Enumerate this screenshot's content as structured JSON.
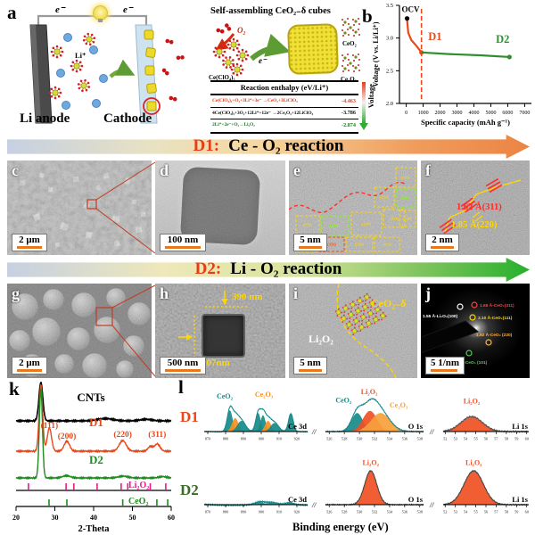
{
  "figure": {
    "panel_letters": {
      "a": "a",
      "b": "b",
      "c": "c",
      "d": "d",
      "e": "e",
      "f": "f",
      "g": "g",
      "h": "h",
      "i": "i",
      "j": "j",
      "k": "k",
      "l": "l"
    },
    "axis_break": "//"
  },
  "panel_a": {
    "electron_left": "e⁻",
    "electron_right": "e⁻",
    "electron_scheme": "e⁻",
    "anode_label": "Li anode",
    "cathode_label": "Cathode",
    "li_ion_label": "Li⁺",
    "o2_label": "O₂",
    "scheme_title": "Self-assembling CeO₂₋δ cubes",
    "precursor_label": "Ce(ClO₄)₃",
    "ceo2_label": "CeO₂",
    "ce2o3_label": "Ce₂O₃",
    "voltage_axis_label": "Voltage",
    "table": {
      "header": "Reaction enthalpy (eV/Li⁺)",
      "rows": [
        {
          "equation": "Ce(ClO₄)₃+O₂+3Li⁺+3e⁻ →CeO₂+3LiClO₄",
          "value": "-4.463",
          "color": "#e83c16"
        },
        {
          "equation": "4Ce(ClO₄)₃+3O₂+12Li⁺+12e⁻ →2Ce₂O₃+12LiClO₄",
          "value": "-3.786",
          "color": "#111111"
        },
        {
          "equation": "2Li⁺+2e⁻+O₂→Li₂O₂",
          "value": "-2.874",
          "color": "#1e7a1e"
        }
      ]
    }
  },
  "banners": {
    "d1": {
      "prefix": "D1:",
      "title": "Ce - O₂ reaction"
    },
    "d2": {
      "prefix": "D2:",
      "title": "Li - O₂ reaction"
    }
  },
  "micrographs": {
    "c": {
      "scalebar": "2 μm"
    },
    "d": {
      "scalebar": "100 nm"
    },
    "e": {
      "scalebar": "5 nm",
      "plane_labels": [
        "(111)",
        "(200)",
        "(220)",
        "(311)",
        "(220)",
        "(311)",
        "(220)",
        "(111)",
        "(111)",
        "(200)",
        "(311)",
        "(220)"
      ]
    },
    "f": {
      "scalebar": "2 nm",
      "d_spacing_1": "1.62 Å(311)",
      "d_spacing_2": "1.85 Å(220)"
    },
    "g": {
      "scalebar": "2 μm"
    },
    "h": {
      "scalebar": "500 nm",
      "height_label": "390 nm",
      "width_label": "407nm"
    },
    "i": {
      "scalebar": "5 nm",
      "phase_left": "Li₂O₂",
      "phase_right": "CeO₂₋δ"
    },
    "j": {
      "scalebar": "5 1/nm",
      "rings": [
        {
          "text": "1.55 Å-Li₂O₂(100)",
          "color": "#ffffff"
        },
        {
          "text": "1.68 Å-CeO₂(311)",
          "color": "#ff4040"
        },
        {
          "text": "3.10 Å-CeO₂(111)",
          "color": "#ffd700"
        },
        {
          "text": "1.92 Å-CeO₂ (220)",
          "color": "#ffb347"
        },
        {
          "text": "2.98Å -CeO₂ (101)",
          "color": "#55cc55"
        }
      ]
    }
  },
  "chart_data": [
    {
      "id": "discharge_curve",
      "type": "line",
      "xlabel": "Specific capacity (mAh g⁻¹)",
      "ylabel": "Voltage (V vs. Li/Li⁺)",
      "xlim": [
        -400,
        7400
      ],
      "ylim": [
        2.0,
        3.5
      ],
      "xticks": [
        0,
        1000,
        2000,
        3000,
        4000,
        5000,
        6000,
        7000
      ],
      "yticks": [
        "2.0",
        "2.5",
        "3.0",
        "3.5"
      ],
      "series": [
        {
          "name": "D1",
          "color": "#e8481c",
          "x": [
            50,
            120,
            300,
            600,
            900
          ],
          "y": [
            3.28,
            3.08,
            2.97,
            2.88,
            2.78
          ]
        },
        {
          "name": "D2",
          "color": "#2f8f2f",
          "x": [
            900,
            2500,
            4500,
            6100
          ],
          "y": [
            2.78,
            2.755,
            2.735,
            2.71
          ]
        }
      ],
      "ocv": {
        "x": 50,
        "y": 3.3,
        "label": "OCV"
      },
      "vline": {
        "x": 900,
        "color": "#e8481c"
      },
      "annotations": [
        {
          "text": "D1",
          "x": 1300,
          "y": 2.97,
          "color": "#e8481c"
        },
        {
          "text": "D2",
          "x": 5300,
          "y": 2.93,
          "color": "#2f8f2f"
        }
      ]
    },
    {
      "id": "xrd_patterns",
      "type": "line",
      "xlabel": "2-Theta",
      "xlim": [
        20,
        60
      ],
      "xticks": [
        20,
        30,
        40,
        50,
        60
      ],
      "series": [
        {
          "name": "CNTs",
          "color": "#000000",
          "peaks": [
            {
              "c": 26.4,
              "w": 0.5,
              "h": 1.0
            },
            {
              "c": 43.0,
              "w": 2.0,
              "h": 0.06
            },
            {
              "c": 53.5,
              "w": 1.5,
              "h": 0.04
            }
          ]
        },
        {
          "name": "D1",
          "color": "#e8481c",
          "peaks": [
            {
              "c": 26.4,
              "w": 0.45,
              "h": 1.0
            },
            {
              "c": 28.6,
              "w": 0.55,
              "h": 0.35
            },
            {
              "c": 33.1,
              "w": 0.7,
              "h": 0.15
            },
            {
              "c": 47.5,
              "w": 0.9,
              "h": 0.16
            },
            {
              "c": 54.6,
              "w": 0.6,
              "h": 0.07
            },
            {
              "c": 56.4,
              "w": 0.7,
              "h": 0.11
            }
          ]
        },
        {
          "name": "D2",
          "color": "#1f8a1f",
          "peaks": [
            {
              "c": 26.4,
              "w": 0.4,
              "h": 1.0
            },
            {
              "c": 33.0,
              "w": 1.0,
              "h": 0.025
            },
            {
              "c": 47.6,
              "w": 1.2,
              "h": 0.02
            },
            {
              "c": 57.8,
              "w": 1.0,
              "h": 0.015
            }
          ]
        }
      ],
      "peak_labels": [
        {
          "text": "(111)",
          "x": 28.6
        },
        {
          "text": "(200)",
          "x": 33.1
        },
        {
          "text": "(220)",
          "x": 47.5
        },
        {
          "text": "(311)",
          "x": 56.4
        }
      ],
      "references": [
        {
          "name": "Li₂O₂",
          "color": "#e8198b",
          "ticks": [
            23.2,
            32.9,
            34.9,
            40.9,
            47.1,
            48.8,
            54.6,
            58.6
          ]
        },
        {
          "name": "CeO₂",
          "color": "#1f8a1f",
          "ticks": [
            28.5,
            33.1,
            47.5,
            56.3,
            59.1
          ]
        }
      ]
    },
    {
      "id": "xps_spectra",
      "type": "area",
      "xlabel": "Binding energy (eV)",
      "rows": [
        "D1",
        "D2"
      ],
      "row_colors": {
        "D1": "#e8481c",
        "D2": "#3a6b2a"
      },
      "subplots": [
        {
          "row": "D1",
          "region": "Ce 3d",
          "xmin": 868,
          "xmax": 926,
          "xticks": [
            870,
            880,
            890,
            900,
            910,
            920
          ],
          "envelope_color": "#17898a",
          "noise": 0.015,
          "components": [
            {
              "c": 882.4,
              "w": 1.5,
              "h": 0.6,
              "color": "#17898a"
            },
            {
              "c": 885.4,
              "w": 1.8,
              "h": 0.38,
              "color": "#f59120"
            },
            {
              "c": 888.9,
              "w": 2.3,
              "h": 0.3,
              "color": "#17898a"
            },
            {
              "c": 898.3,
              "w": 1.4,
              "h": 0.52,
              "color": "#17898a"
            },
            {
              "c": 901.0,
              "w": 1.4,
              "h": 0.46,
              "color": "#17898a"
            },
            {
              "c": 903.8,
              "w": 1.7,
              "h": 0.3,
              "color": "#f59120"
            },
            {
              "c": 907.4,
              "w": 2.2,
              "h": 0.24,
              "color": "#17898a"
            },
            {
              "c": 916.6,
              "w": 1.3,
              "h": 0.5,
              "color": "#17898a"
            }
          ],
          "labels": [
            {
              "text": "CeO₂",
              "color": "#17898a",
              "x": 879.5,
              "y": 0.92
            },
            {
              "text": "Ce₂O₃",
              "color": "#f59120",
              "x": 901.5,
              "y": 0.98
            }
          ]
        },
        {
          "row": "D1",
          "region": "O 1s",
          "xmin": 525.5,
          "xmax": 538.5,
          "xticks": [
            526,
            528,
            530,
            532,
            534,
            536,
            538
          ],
          "envelope_color": "#17898a",
          "noise": 0.015,
          "components": [
            {
              "c": 529.7,
              "w": 0.75,
              "h": 0.52,
              "color": "#17898a"
            },
            {
              "c": 531.4,
              "w": 0.95,
              "h": 0.58,
              "color": "#f05023"
            },
            {
              "c": 532.8,
              "w": 1.25,
              "h": 0.52,
              "color": "#f7a03c"
            }
          ],
          "labels": [
            {
              "text": "CeO₂",
              "color": "#17898a",
              "x": 527.9,
              "y": 0.8
            },
            {
              "text": "Li₂O₂",
              "color": "#f05023",
              "x": 531.3,
              "y": 1.05
            },
            {
              "text": "Ce₂O₃",
              "color": "#f7a03c",
              "x": 535.2,
              "y": 0.66
            }
          ]
        },
        {
          "row": "D1",
          "region": "Li 1s",
          "xmin": 51.8,
          "xmax": 60.2,
          "xticks": [
            52,
            53,
            54,
            55,
            56,
            57,
            58,
            59,
            60
          ],
          "envelope_color": "#555555",
          "noise": 0.02,
          "components": [
            {
              "c": 54.6,
              "w": 1.05,
              "h": 0.42,
              "color": "#f05023"
            }
          ],
          "labels": [
            {
              "text": "Li₂O₂",
              "color": "#f05023",
              "x": 54.6,
              "y": 0.78
            }
          ]
        },
        {
          "row": "D2",
          "region": "Ce 3d",
          "xmin": 868,
          "xmax": 926,
          "xticks": [
            870,
            880,
            890,
            900,
            910,
            920
          ],
          "envelope_color": "#17898a",
          "noise": 0.03,
          "components": [
            {
              "c": 899,
              "w": 2.5,
              "h": 0.07,
              "color": "#17898a"
            },
            {
              "c": 905,
              "w": 3.0,
              "h": 0.05,
              "color": "#17898a"
            },
            {
              "c": 916,
              "w": 2.0,
              "h": 0.05,
              "color": "#17898a"
            }
          ],
          "labels": []
        },
        {
          "row": "D2",
          "region": "O 1s",
          "xmin": 525.5,
          "xmax": 538.5,
          "xticks": [
            526,
            528,
            530,
            532,
            534,
            536,
            538
          ],
          "envelope_color": "#444444",
          "noise": 0.015,
          "components": [
            {
              "c": 531.5,
              "w": 0.8,
              "h": 0.95,
              "color": "#f05023"
            }
          ],
          "labels": [
            {
              "text": "Li₂O₂",
              "color": "#f05023",
              "x": 531.5,
              "y": 1.12
            }
          ]
        },
        {
          "row": "D2",
          "region": "Li 1s",
          "xmin": 51.8,
          "xmax": 60.2,
          "xticks": [
            52,
            53,
            54,
            55,
            56,
            57,
            58,
            59,
            60
          ],
          "envelope_color": "#444444",
          "noise": 0.015,
          "components": [
            {
              "c": 54.8,
              "w": 0.95,
              "h": 0.95,
              "color": "#f05023"
            }
          ],
          "labels": [
            {
              "text": "Li₂O₂",
              "color": "#f05023",
              "x": 54.8,
              "y": 1.12
            }
          ]
        }
      ]
    }
  ]
}
